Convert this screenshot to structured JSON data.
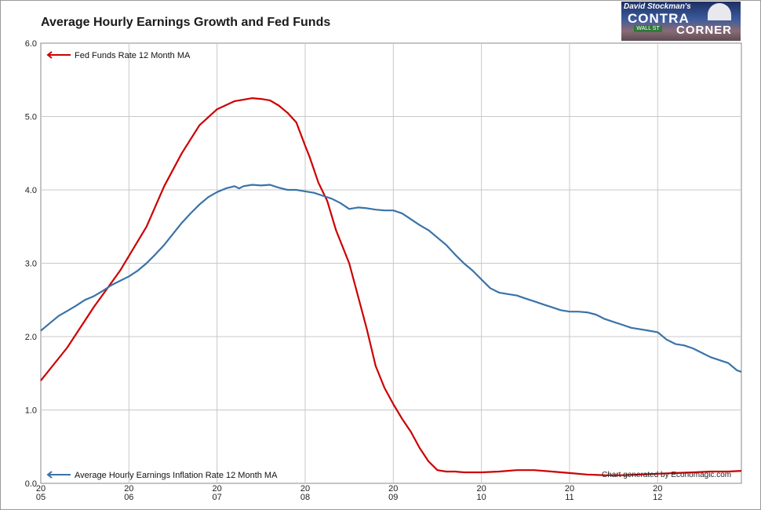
{
  "chart_data": {
    "type": "line",
    "title": "Average Hourly Earnings Growth and Fed Funds",
    "y_ticks": [
      "0.0",
      "1.0",
      "2.0",
      "3.0",
      "4.0",
      "5.0",
      "6.0"
    ],
    "ylim": [
      0,
      6
    ],
    "x_ticks": [
      {
        "top": "20",
        "bottom": "05",
        "x": 2005.0
      },
      {
        "top": "20",
        "bottom": "06",
        "x": 2006.0
      },
      {
        "top": "20",
        "bottom": "07",
        "x": 2007.0
      },
      {
        "top": "20",
        "bottom": "08",
        "x": 2008.0
      },
      {
        "top": "20",
        "bottom": "09",
        "x": 2009.0
      },
      {
        "top": "20",
        "bottom": "10",
        "x": 2010.0
      },
      {
        "top": "20",
        "bottom": "11",
        "x": 2011.0
      },
      {
        "top": "20",
        "bottom": "12",
        "x": 2012.0
      }
    ],
    "xlim": [
      2005.0,
      2012.95
    ],
    "grid": true,
    "series": [
      {
        "name": "Fed Funds Rate 12 Month MA",
        "color": "#cc0000",
        "legend_position": "top-left",
        "x": [
          2005.0,
          2005.3,
          2005.6,
          2005.9,
          2006.2,
          2006.4,
          2006.6,
          2006.8,
          2007.0,
          2007.2,
          2007.4,
          2007.5,
          2007.6,
          2007.7,
          2007.8,
          2007.9,
          2008.0,
          2008.05,
          2008.15,
          2008.25,
          2008.35,
          2008.5,
          2008.6,
          2008.7,
          2008.8,
          2008.9,
          2009.0,
          2009.1,
          2009.2,
          2009.3,
          2009.4,
          2009.5,
          2009.6,
          2009.7,
          2009.8,
          2009.9,
          2010.0,
          2010.2,
          2010.4,
          2010.6,
          2010.8,
          2011.0,
          2011.2,
          2011.4,
          2011.6,
          2011.8,
          2012.0,
          2012.2,
          2012.4,
          2012.6,
          2012.8,
          2012.95
        ],
        "values": [
          1.4,
          1.85,
          2.4,
          2.9,
          3.5,
          4.05,
          4.5,
          4.88,
          5.1,
          5.21,
          5.25,
          5.24,
          5.22,
          5.15,
          5.05,
          4.92,
          4.6,
          4.45,
          4.1,
          3.85,
          3.45,
          3.0,
          2.55,
          2.1,
          1.6,
          1.3,
          1.08,
          0.88,
          0.7,
          0.48,
          0.3,
          0.18,
          0.16,
          0.16,
          0.15,
          0.15,
          0.15,
          0.16,
          0.18,
          0.18,
          0.16,
          0.14,
          0.12,
          0.11,
          0.11,
          0.12,
          0.13,
          0.14,
          0.15,
          0.16,
          0.16,
          0.17
        ]
      },
      {
        "name": "Average Hourly Earnings Inflation Rate 12 Month MA",
        "color": "#3a73a8",
        "legend_position": "bottom-left",
        "x": [
          2005.0,
          2005.1,
          2005.2,
          2005.3,
          2005.4,
          2005.5,
          2005.6,
          2005.7,
          2005.8,
          2005.9,
          2006.0,
          2006.1,
          2006.2,
          2006.3,
          2006.4,
          2006.5,
          2006.6,
          2006.7,
          2006.8,
          2006.9,
          2007.0,
          2007.1,
          2007.2,
          2007.25,
          2007.3,
          2007.4,
          2007.5,
          2007.6,
          2007.7,
          2007.8,
          2007.9,
          2008.0,
          2008.1,
          2008.2,
          2008.3,
          2008.4,
          2008.5,
          2008.6,
          2008.7,
          2008.8,
          2008.9,
          2009.0,
          2009.1,
          2009.2,
          2009.3,
          2009.4,
          2009.5,
          2009.6,
          2009.7,
          2009.8,
          2009.9,
          2010.0,
          2010.1,
          2010.2,
          2010.3,
          2010.4,
          2010.5,
          2010.6,
          2010.7,
          2010.8,
          2010.9,
          2011.0,
          2011.1,
          2011.2,
          2011.3,
          2011.4,
          2011.5,
          2011.6,
          2011.7,
          2011.8,
          2011.9,
          2012.0,
          2012.1,
          2012.2,
          2012.3,
          2012.4,
          2012.5,
          2012.6,
          2012.7,
          2012.8,
          2012.9,
          2012.95
        ],
        "values": [
          2.08,
          2.18,
          2.28,
          2.35,
          2.42,
          2.5,
          2.55,
          2.62,
          2.7,
          2.76,
          2.82,
          2.9,
          3.0,
          3.12,
          3.25,
          3.4,
          3.55,
          3.68,
          3.8,
          3.9,
          3.97,
          4.02,
          4.05,
          4.02,
          4.05,
          4.07,
          4.06,
          4.07,
          4.03,
          4.0,
          4.0,
          3.98,
          3.96,
          3.92,
          3.88,
          3.82,
          3.74,
          3.76,
          3.75,
          3.73,
          3.72,
          3.72,
          3.68,
          3.6,
          3.52,
          3.45,
          3.35,
          3.25,
          3.12,
          3.0,
          2.9,
          2.78,
          2.66,
          2.6,
          2.58,
          2.56,
          2.52,
          2.48,
          2.44,
          2.4,
          2.36,
          2.34,
          2.34,
          2.33,
          2.3,
          2.24,
          2.2,
          2.16,
          2.12,
          2.1,
          2.08,
          2.06,
          1.96,
          1.9,
          1.88,
          1.84,
          1.78,
          1.72,
          1.68,
          1.64,
          1.54,
          1.52
        ]
      }
    ]
  },
  "logo": {
    "line1": "David Stockman's",
    "line2": "CONTRA",
    "line3": "CORNER",
    "sign": "WALL ST"
  },
  "credit": "Chart generated by Economagic.com"
}
